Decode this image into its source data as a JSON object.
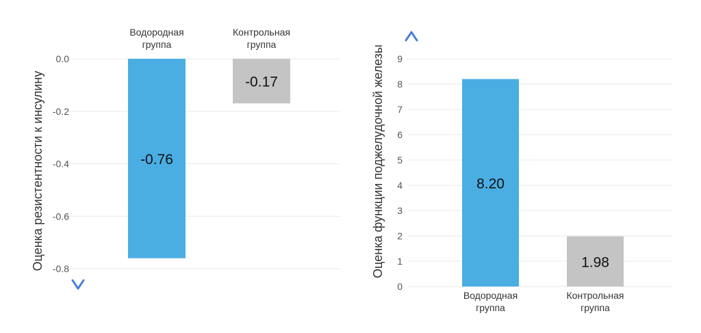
{
  "colors": {
    "hydrogen_bar": "#4AAEE3",
    "control_bar": "#C4C4C4",
    "grid": "#E9E9E9",
    "arrow_red": "#F07C7C",
    "arrow_blue": "#4A7FD8",
    "text": "#333333"
  },
  "chart_data": [
    {
      "type": "bar",
      "categories": [
        "Водородная\nгруппа",
        "Контрольная\nгруппа"
      ],
      "values": [
        -0.76,
        -0.17
      ],
      "data_labels": [
        "-0.76",
        "-0.17"
      ],
      "ylabel": "Оценка резистентности к инсулину",
      "ylim": [
        -0.8,
        0
      ],
      "yticks": [
        "0.0",
        "-0.2",
        "-0.4",
        "-0.6",
        "-0.8"
      ],
      "ytick_values": [
        0,
        -0.2,
        -0.4,
        -0.6,
        -0.8
      ],
      "category_labels_position": "top",
      "grid": true,
      "axis_arrow": "down"
    },
    {
      "type": "bar",
      "categories": [
        "Водородная\nгруппа",
        "Контрольная\nгруппа"
      ],
      "values": [
        8.2,
        1.98
      ],
      "data_labels": [
        "8.20",
        "1.98"
      ],
      "ylabel": "Оценка функции поджелудочной железы",
      "ylim": [
        0,
        9
      ],
      "yticks": [
        "0",
        "1",
        "2",
        "3",
        "4",
        "5",
        "6",
        "7",
        "8",
        "9"
      ],
      "ytick_values": [
        0,
        1,
        2,
        3,
        4,
        5,
        6,
        7,
        8,
        9
      ],
      "category_labels_position": "bottom",
      "grid": true,
      "axis_arrow": "up"
    }
  ]
}
